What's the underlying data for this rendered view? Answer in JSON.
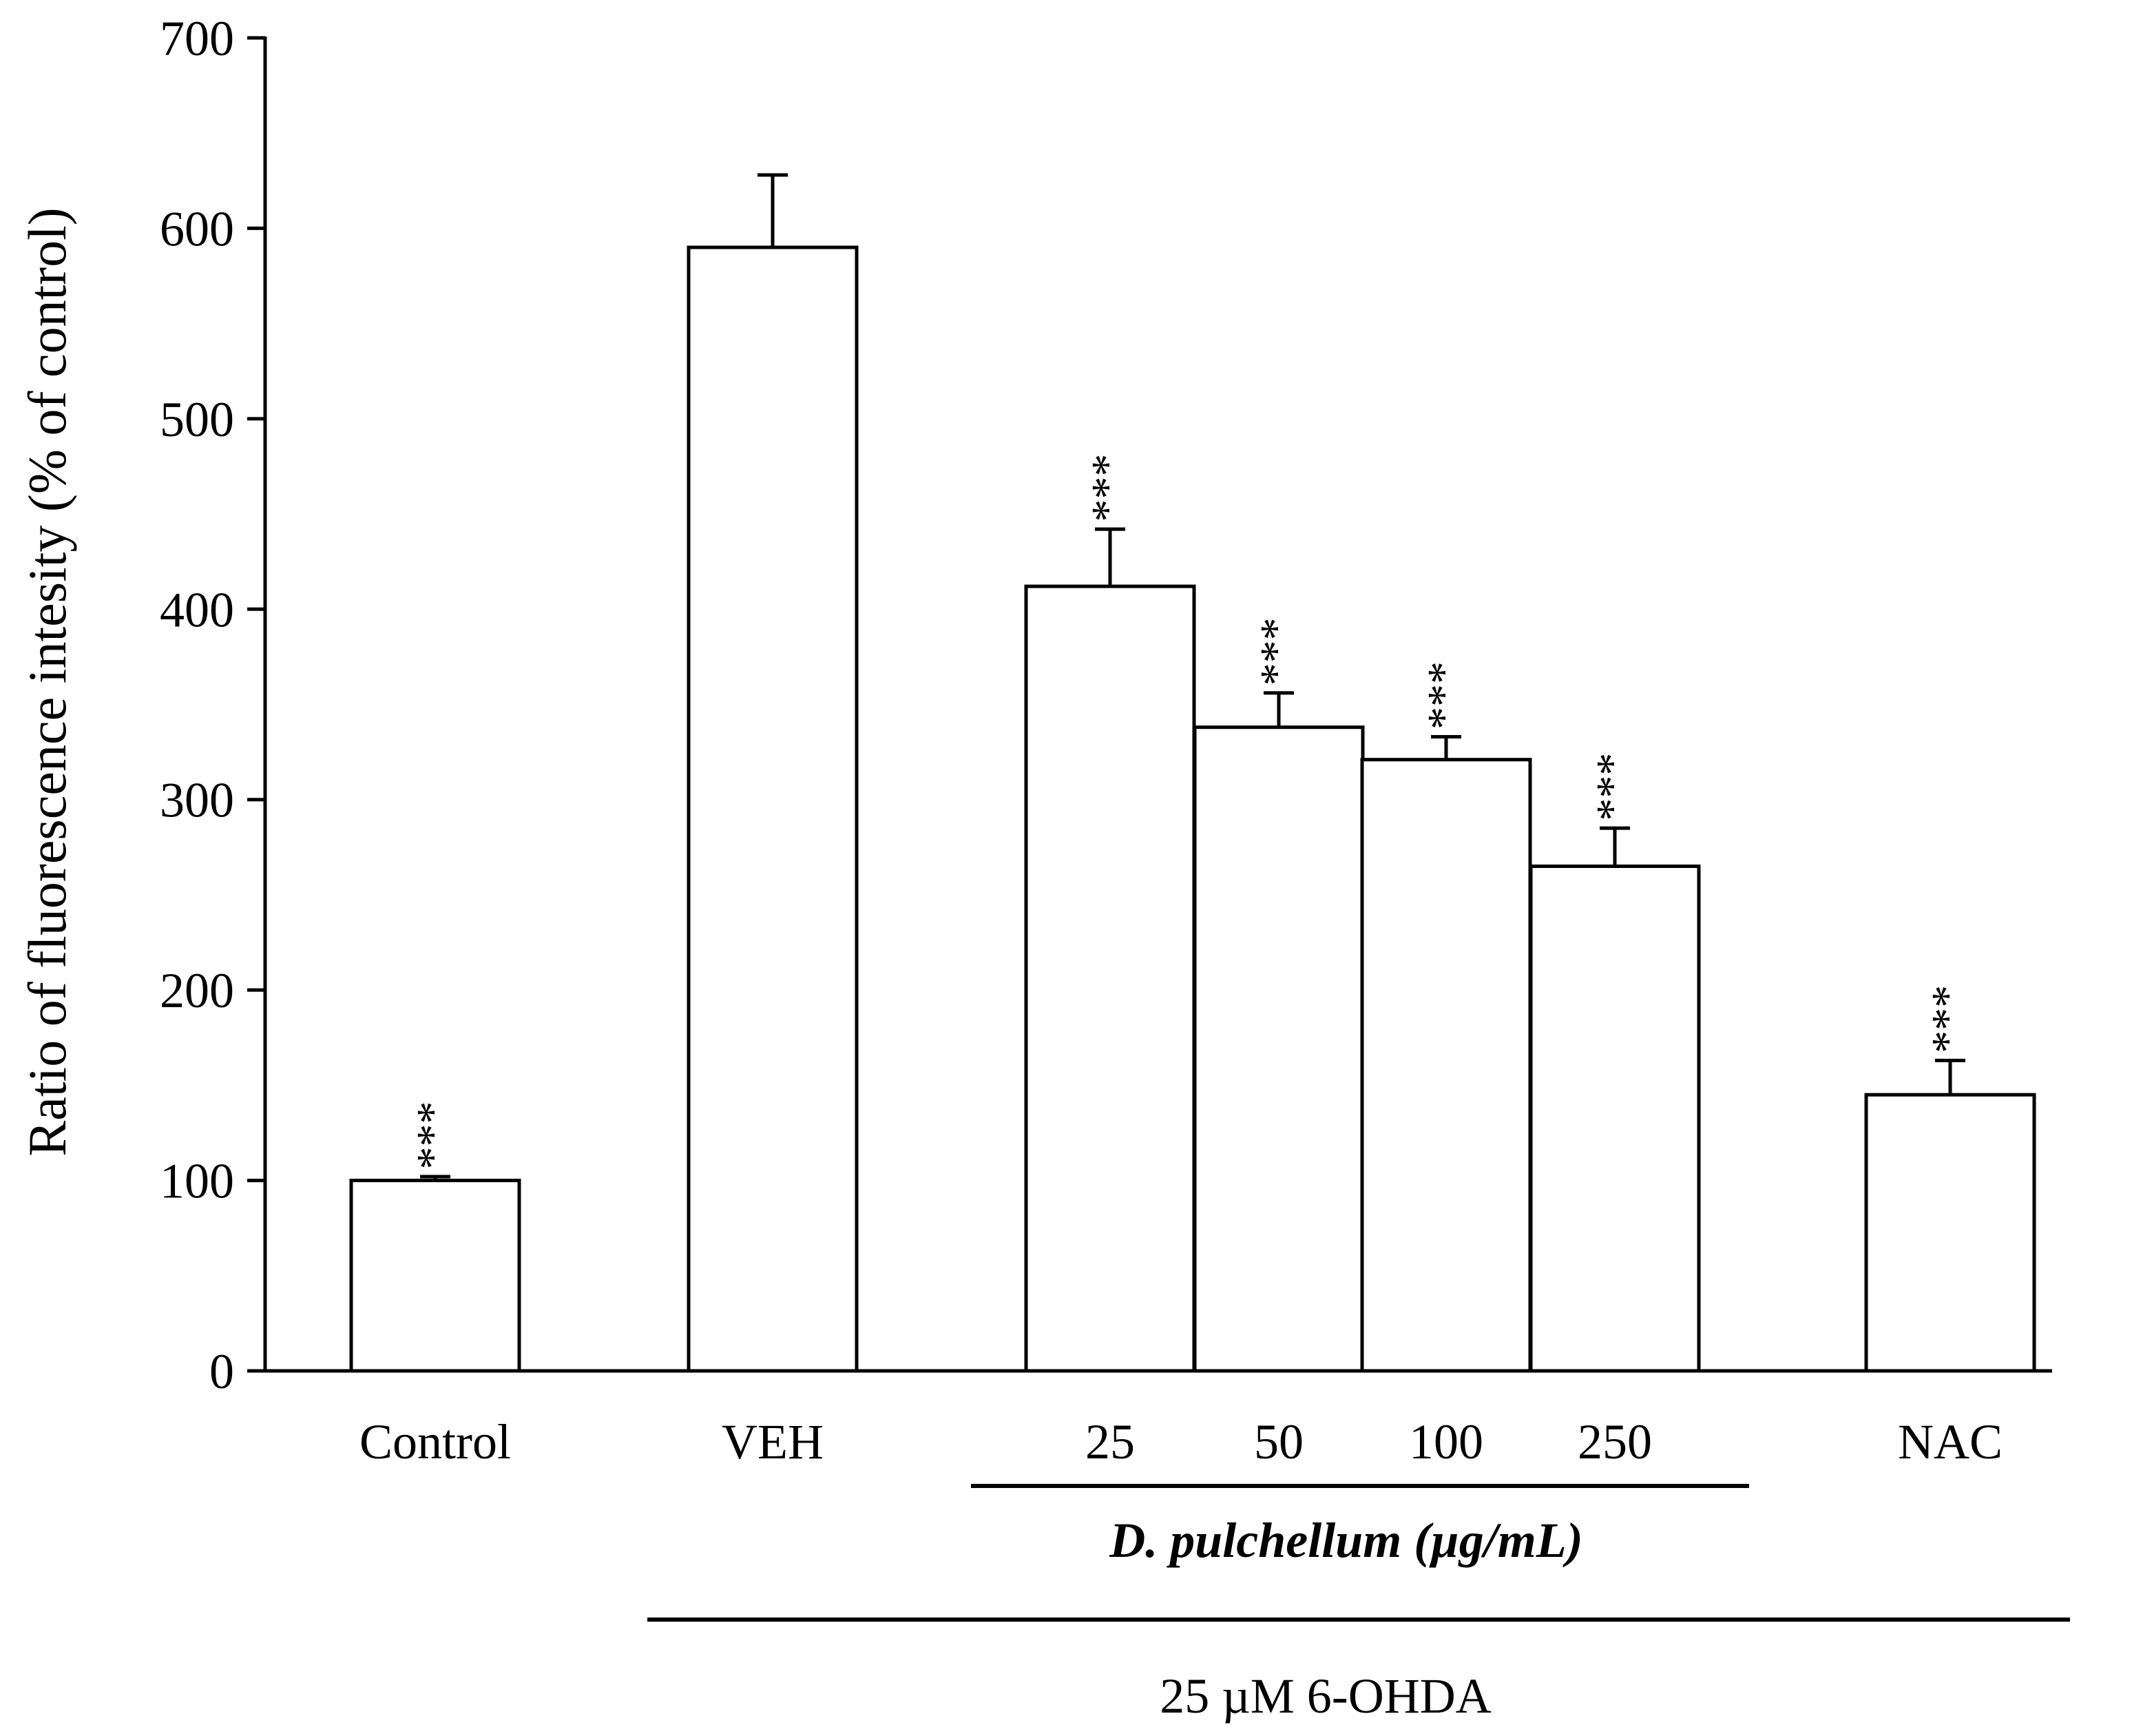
{
  "chart_data": {
    "type": "bar",
    "title": "",
    "ylabel": "Ratio of fluorescence intesity (% of control)",
    "xlabel": "",
    "ylim": [
      0,
      700
    ],
    "yticks": [
      0,
      100,
      200,
      300,
      400,
      500,
      600,
      700
    ],
    "categories": [
      "Control",
      "VEH",
      "25",
      "50",
      "100",
      "250",
      "NAC"
    ],
    "values": [
      100,
      590,
      412,
      338,
      321,
      265,
      145
    ],
    "errors": [
      2,
      38,
      30,
      18,
      12,
      20,
      18
    ],
    "significance": [
      "***",
      "",
      "***",
      "***",
      "***",
      "***",
      "***"
    ],
    "groups": {
      "dose_group_label": "D. pulchellum (µg/mL)",
      "treatment_label": "25 µM 6-OHDA"
    }
  }
}
